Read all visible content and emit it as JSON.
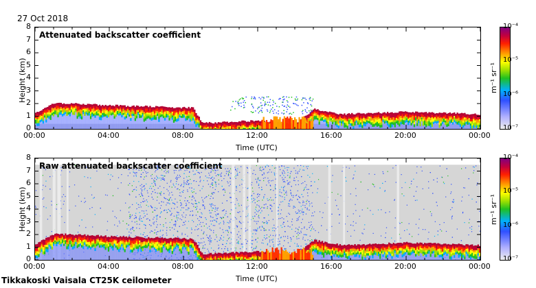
{
  "date": "27 Oct 2018",
  "footer": "Tikkakoski Vaisala CT25K ceilometer",
  "colorbar": {
    "unit": "m⁻¹ sr⁻¹",
    "ticks": [
      "10⁻⁴",
      "10⁻⁵",
      "10⁻⁶",
      "10⁻⁷"
    ]
  },
  "chart_data": [
    {
      "type": "heatmap",
      "title": "Attenuated backscatter coefficient",
      "xlabel": "Time (UTC)",
      "ylabel": "Height (km)",
      "x_ticks": [
        "00:00",
        "04:00",
        "08:00",
        "12:00",
        "16:00",
        "20:00",
        "00:00"
      ],
      "y_ticks": [
        "0",
        "1",
        "2",
        "3",
        "4",
        "5",
        "6",
        "7",
        "8"
      ],
      "xlim_hours": [
        0,
        24
      ],
      "ylim": [
        0,
        8
      ],
      "color_scale": "log",
      "color_range": [
        1e-07,
        0.0001
      ],
      "cloud_layer_top_km": [
        {
          "t": 0.0,
          "h": 1.2
        },
        {
          "t": 1.0,
          "h": 2.0
        },
        {
          "t": 4.0,
          "h": 1.8
        },
        {
          "t": 8.5,
          "h": 1.6
        },
        {
          "t": 9.0,
          "h": 0.4
        },
        {
          "t": 12.0,
          "h": 0.6
        },
        {
          "t": 14.0,
          "h": 0.3
        },
        {
          "t": 15.0,
          "h": 1.5
        },
        {
          "t": 16.5,
          "h": 1.1
        },
        {
          "t": 20.0,
          "h": 1.3
        },
        {
          "t": 24.0,
          "h": 1.1
        }
      ]
    },
    {
      "type": "heatmap",
      "title": "Raw attenuated backscatter coefficient",
      "xlabel": "Time (UTC)",
      "ylabel": "Height (km)",
      "x_ticks": [
        "00:00",
        "04:00",
        "08:00",
        "12:00",
        "16:00",
        "20:00",
        "00:00"
      ],
      "y_ticks": [
        "0",
        "1",
        "2",
        "3",
        "4",
        "5",
        "6",
        "7",
        "8"
      ],
      "xlim_hours": [
        0,
        24
      ],
      "ylim": [
        0,
        8
      ],
      "color_scale": "log",
      "color_range": [
        1e-07,
        0.0001
      ]
    }
  ]
}
